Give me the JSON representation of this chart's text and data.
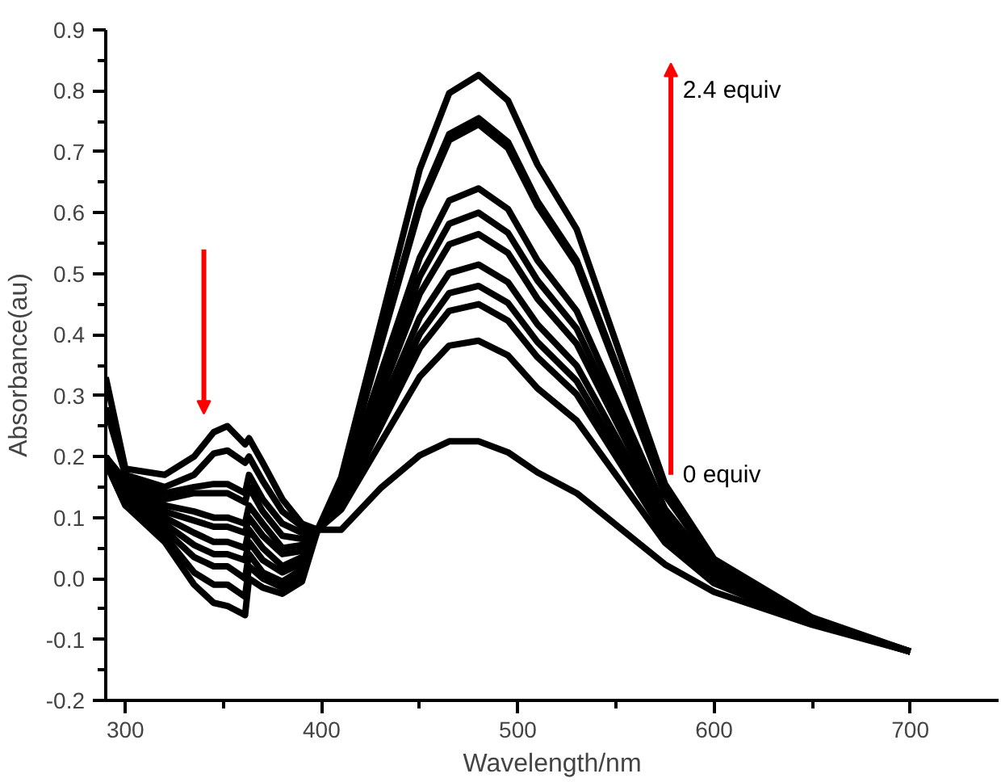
{
  "chart_data": {
    "type": "line",
    "xlabel": "Wavelength/nm",
    "ylabel": "Absorbance(au)",
    "marker": "none",
    "line_style": "solid",
    "grid": false,
    "xlim": [
      290,
      745
    ],
    "ylim": [
      -0.2,
      0.9
    ],
    "xticks": [
      300,
      {
        "value": 350,
        "label": null
      },
      400,
      {
        "value": 450,
        "label": null
      },
      500,
      {
        "value": 550,
        "label": null
      },
      600,
      {
        "value": 650,
        "label": null
      },
      700
    ],
    "yticks": [
      -0.2,
      {
        "value": -0.15,
        "label": null
      },
      -0.1,
      {
        "value": -0.05,
        "label": null
      },
      {
        "value": 0,
        "label": "0.0"
      },
      {
        "value": 0.05,
        "label": null
      },
      0.1,
      {
        "value": 0.15,
        "label": null
      },
      0.2,
      {
        "value": 0.25,
        "label": null
      },
      0.3,
      {
        "value": 0.35,
        "label": null
      },
      0.4,
      {
        "value": 0.45,
        "label": null
      },
      0.5,
      {
        "value": 0.55,
        "label": null
      },
      0.6,
      {
        "value": 0.65,
        "label": null
      },
      0.7,
      {
        "value": 0.75,
        "label": null
      },
      0.8,
      {
        "value": 0.85,
        "label": null
      },
      0.9
    ],
    "x": [
      290,
      300,
      320,
      335,
      345,
      352,
      361,
      363,
      370,
      380,
      390,
      398,
      410,
      430,
      450,
      465,
      480,
      495,
      510,
      530,
      550,
      575,
      600,
      650,
      700
    ],
    "series": [
      {
        "color": "#000000",
        "values": [
          0.33,
          0.18,
          0.17,
          0.2,
          0.24,
          0.25,
          0.22,
          0.23,
          0.19,
          0.13,
          0.09,
          0.08,
          0.08,
          0.148,
          0.202,
          0.225,
          0.225,
          0.207,
          0.174,
          0.14,
          0.088,
          0.023,
          -0.022,
          -0.076,
          -0.12
        ]
      },
      {
        "color": "#000000",
        "values": [
          0.28,
          0.17,
          0.15,
          0.17,
          0.205,
          0.21,
          0.19,
          0.2,
          0.16,
          0.11,
          0.085,
          0.08,
          0.113,
          0.222,
          0.331,
          0.382,
          0.39,
          0.366,
          0.312,
          0.259,
          0.17,
          0.059,
          -0.008,
          -0.073,
          -0.12
        ]
      },
      {
        "color": "#000000",
        "values": [
          0.2,
          0.16,
          0.14,
          0.15,
          0.155,
          0.155,
          0.14,
          0.17,
          0.13,
          0.09,
          0.075,
          0.08,
          0.12,
          0.249,
          0.378,
          0.439,
          0.45,
          0.423,
          0.363,
          0.302,
          0.2,
          0.072,
          -0.002,
          -0.072,
          -0.12
        ]
      },
      {
        "color": "#000000",
        "values": [
          0.2,
          0.15,
          0.13,
          0.14,
          0.14,
          0.14,
          0.125,
          0.15,
          0.11,
          0.07,
          0.065,
          0.08,
          0.124,
          0.263,
          0.401,
          0.468,
          0.48,
          0.452,
          0.388,
          0.324,
          0.215,
          0.079,
          0.001,
          -0.071,
          -0.12
        ]
      },
      {
        "color": "#000000",
        "values": [
          0.2,
          0.15,
          0.12,
          0.11,
          0.1,
          0.1,
          0.09,
          0.12,
          0.09,
          0.05,
          0.055,
          0.08,
          0.128,
          0.278,
          0.428,
          0.501,
          0.515,
          0.486,
          0.417,
          0.349,
          0.233,
          0.087,
          0.004,
          -0.07,
          -0.12
        ]
      },
      {
        "color": "#000000",
        "values": [
          0.2,
          0.14,
          0.11,
          0.095,
          0.085,
          0.085,
          0.075,
          0.1,
          0.07,
          0.04,
          0.045,
          0.08,
          0.134,
          0.301,
          0.467,
          0.548,
          0.565,
          0.534,
          0.459,
          0.385,
          0.258,
          0.098,
          0.008,
          -0.069,
          -0.12
        ]
      },
      {
        "color": "#000000",
        "values": [
          0.2,
          0.14,
          0.1,
          0.075,
          0.06,
          0.06,
          0.05,
          0.08,
          0.05,
          0.02,
          0.035,
          0.08,
          0.138,
          0.317,
          0.495,
          0.582,
          0.6,
          0.567,
          0.489,
          0.41,
          0.275,
          0.105,
          0.011,
          -0.069,
          -0.12
        ]
      },
      {
        "color": "#000000",
        "values": [
          0.19,
          0.13,
          0.09,
          0.055,
          0.04,
          0.04,
          0.03,
          0.06,
          0.03,
          0.01,
          0.025,
          0.08,
          0.143,
          0.335,
          0.526,
          0.62,
          0.64,
          0.606,
          0.522,
          0.439,
          0.295,
          0.114,
          0.015,
          -0.068,
          -0.12
        ]
      },
      {
        "color": "#000000",
        "values": [
          0.19,
          0.13,
          0.08,
          0.035,
          0.02,
          0.02,
          0.0,
          0.04,
          0.01,
          -0.005,
          0.015,
          0.08,
          0.156,
          0.382,
          0.608,
          0.719,
          0.745,
          0.706,
          0.611,
          0.515,
          0.348,
          0.137,
          0.024,
          -0.066,
          -0.12
        ]
      },
      {
        "color": "#000000",
        "values": [
          0.19,
          0.12,
          0.07,
          0.01,
          -0.01,
          -0.01,
          -0.03,
          0.02,
          0.0,
          -0.015,
          0.005,
          0.08,
          0.157,
          0.386,
          0.616,
          0.729,
          0.755,
          0.716,
          0.619,
          0.522,
          0.353,
          0.14,
          0.025,
          -0.066,
          -0.12
        ]
      },
      {
        "color": "#000000",
        "values": [
          0.19,
          0.12,
          0.06,
          -0.01,
          -0.04,
          -0.045,
          -0.06,
          0.0,
          -0.015,
          -0.025,
          -0.005,
          0.08,
          0.166,
          0.418,
          0.671,
          0.796,
          0.826,
          0.784,
          0.679,
          0.573,
          0.388,
          0.155,
          0.032,
          -0.064,
          -0.12
        ]
      }
    ],
    "annotations": [
      "2.4 equiv",
      "0 equiv"
    ]
  }
}
